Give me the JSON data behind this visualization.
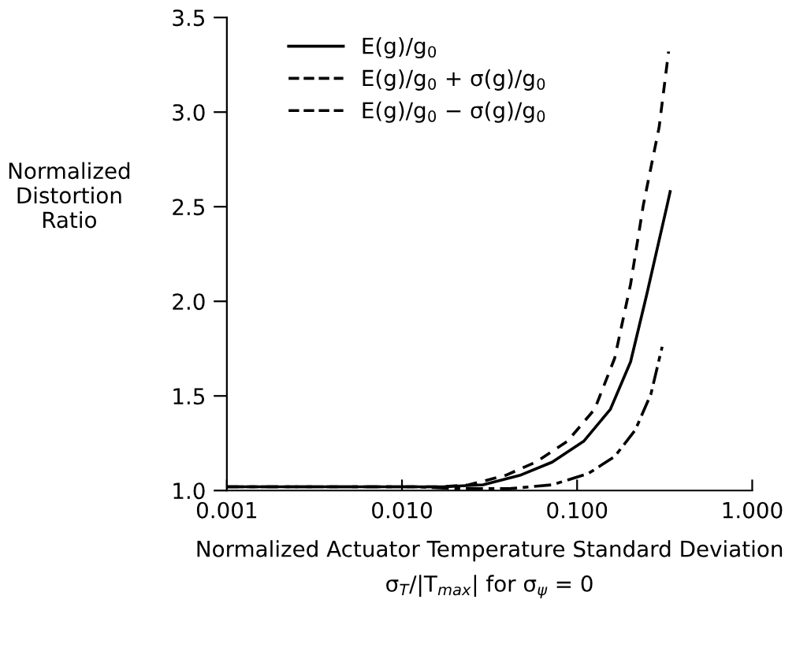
{
  "chart_data": {
    "type": "line",
    "xlabel": "Normalized Actuator Temperature Standard Deviation\nσ$_{T}$/|T$_{max}$| for σ$_{ψ}$ = 0",
    "ylabel": "Normalized\nDistortion\nRatio",
    "log": "x",
    "xlim": [
      0.001,
      1.0
    ],
    "xticks": [
      {
        "value": 0.001,
        "label": "0.001"
      },
      {
        "value": 0.01,
        "label": "0.010"
      },
      {
        "value": 0.1,
        "label": "0.100"
      },
      {
        "value": 1.0,
        "label": "1.000"
      }
    ],
    "ylim": [
      1.0,
      3.5
    ],
    "yticks": [
      {
        "value": 1.0,
        "label": "1.0"
      },
      {
        "value": 1.5,
        "label": "1.5"
      },
      {
        "value": 2.0,
        "label": "2.0"
      },
      {
        "value": 2.5,
        "label": "2.5"
      },
      {
        "value": 3.0,
        "label": "3.0"
      },
      {
        "value": 3.5,
        "label": "3.5"
      }
    ],
    "grid": false,
    "legend": "top left",
    "marker": "none",
    "series": [
      {
        "name": "E(g)/g$_{0}$",
        "color": "#000000",
        "line_style": "solid",
        "x": [
          0.001,
          0.005,
          0.012,
          0.017,
          0.029,
          0.047,
          0.072,
          0.109,
          0.155,
          0.202,
          0.249,
          0.327,
          0.34
        ],
        "values": [
          1.02,
          1.02,
          1.02,
          1.02,
          1.03,
          1.08,
          1.15,
          1.26,
          1.43,
          1.68,
          2.03,
          2.51,
          2.58
        ]
      },
      {
        "name": "E(g)/g$_{0}$ + σ(g)/g$_{0}$",
        "color": "#000000",
        "line_style": "dashed",
        "x": [
          0.001,
          0.005,
          0.012,
          0.017,
          0.024,
          0.039,
          0.058,
          0.088,
          0.126,
          0.164,
          0.202,
          0.239,
          0.294,
          0.333
        ],
        "values": [
          1.02,
          1.02,
          1.02,
          1.02,
          1.03,
          1.08,
          1.15,
          1.26,
          1.43,
          1.7,
          2.09,
          2.51,
          2.92,
          3.32
        ]
      },
      {
        "name": "E(g)/g$_{0}$ − σ(g)/g$_{0}$",
        "color": "#000000",
        "line_style": "longdash",
        "x": [
          0.001,
          0.005,
          0.012,
          0.02,
          0.041,
          0.072,
          0.116,
          0.164,
          0.215,
          0.264,
          0.306
        ],
        "values": [
          1.02,
          1.02,
          1.02,
          1.01,
          1.01,
          1.03,
          1.09,
          1.18,
          1.32,
          1.51,
          1.76
        ]
      }
    ]
  }
}
